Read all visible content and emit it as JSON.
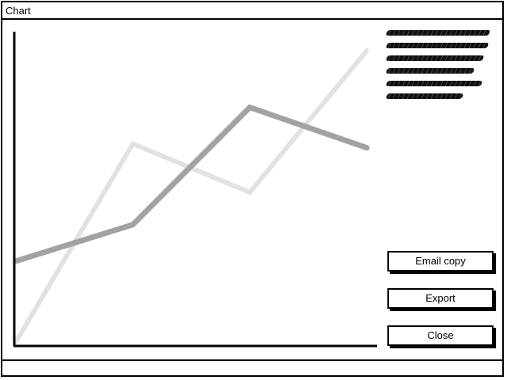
{
  "window": {
    "title": "Chart"
  },
  "chart_data": {
    "type": "line",
    "x": [
      0,
      1,
      2,
      3
    ],
    "series": [
      {
        "values": [
          0,
          2.45,
          1.85,
          3.6
        ]
      },
      {
        "values": [
          1.0,
          1.45,
          2.9,
          2.4
        ]
      }
    ],
    "ylim": [
      0,
      3.6
    ],
    "grid": false,
    "colors": [
      "#e2e2e2",
      "#a2a2a2"
    ]
  },
  "buttons": {
    "email_label": "Email copy",
    "export_label": "Export",
    "close_label": "Close"
  }
}
